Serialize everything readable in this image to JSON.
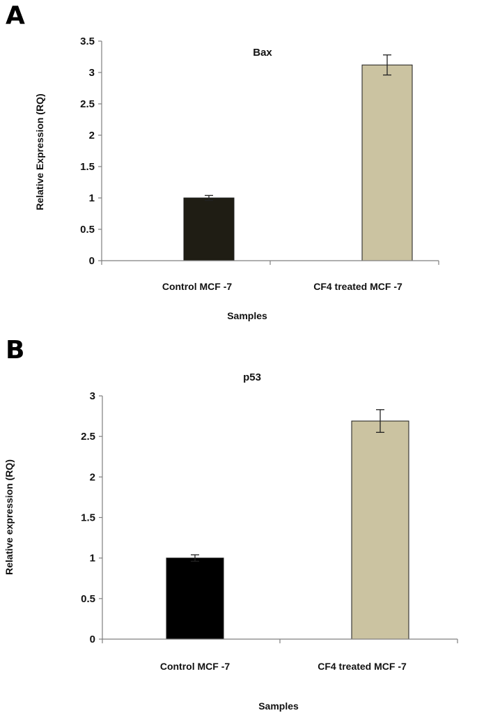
{
  "chart_data": [
    {
      "panel": "A",
      "type": "bar",
      "title": "Bax",
      "categories": [
        "Control MCF -7",
        "CF4 treated MCF -7"
      ],
      "values": [
        1.0,
        3.12
      ],
      "errors": [
        0.04,
        0.16
      ],
      "colors": [
        "#1f1d14",
        "#cbc3a1"
      ],
      "xlabel": "Samples",
      "ylabel": "Relative Expression (RQ)",
      "ylim": [
        0,
        3.5
      ],
      "yticks": [
        "0",
        "0.5",
        "1",
        "1.5",
        "2",
        "2.5",
        "3",
        "3.5"
      ],
      "ytick_values": [
        0,
        0.5,
        1,
        1.5,
        2,
        2.5,
        3,
        3.5
      ],
      "grid": false,
      "legend": false
    },
    {
      "panel": "B",
      "type": "bar",
      "title": "p53",
      "categories": [
        "Control MCF -7",
        "CF4 treated MCF -7"
      ],
      "values": [
        1.0,
        2.69
      ],
      "errors": [
        0.04,
        0.14
      ],
      "colors": [
        "#000000",
        "#cbc3a1"
      ],
      "xlabel": "Samples",
      "ylabel": "Relative expression (RQ)",
      "ylim": [
        0,
        3
      ],
      "yticks": [
        "0",
        "0.5",
        "1",
        "1.5",
        "2",
        "2.5",
        "3"
      ],
      "ytick_values": [
        0,
        0.5,
        1,
        1.5,
        2,
        2.5,
        3
      ],
      "grid": false,
      "legend": false
    }
  ]
}
